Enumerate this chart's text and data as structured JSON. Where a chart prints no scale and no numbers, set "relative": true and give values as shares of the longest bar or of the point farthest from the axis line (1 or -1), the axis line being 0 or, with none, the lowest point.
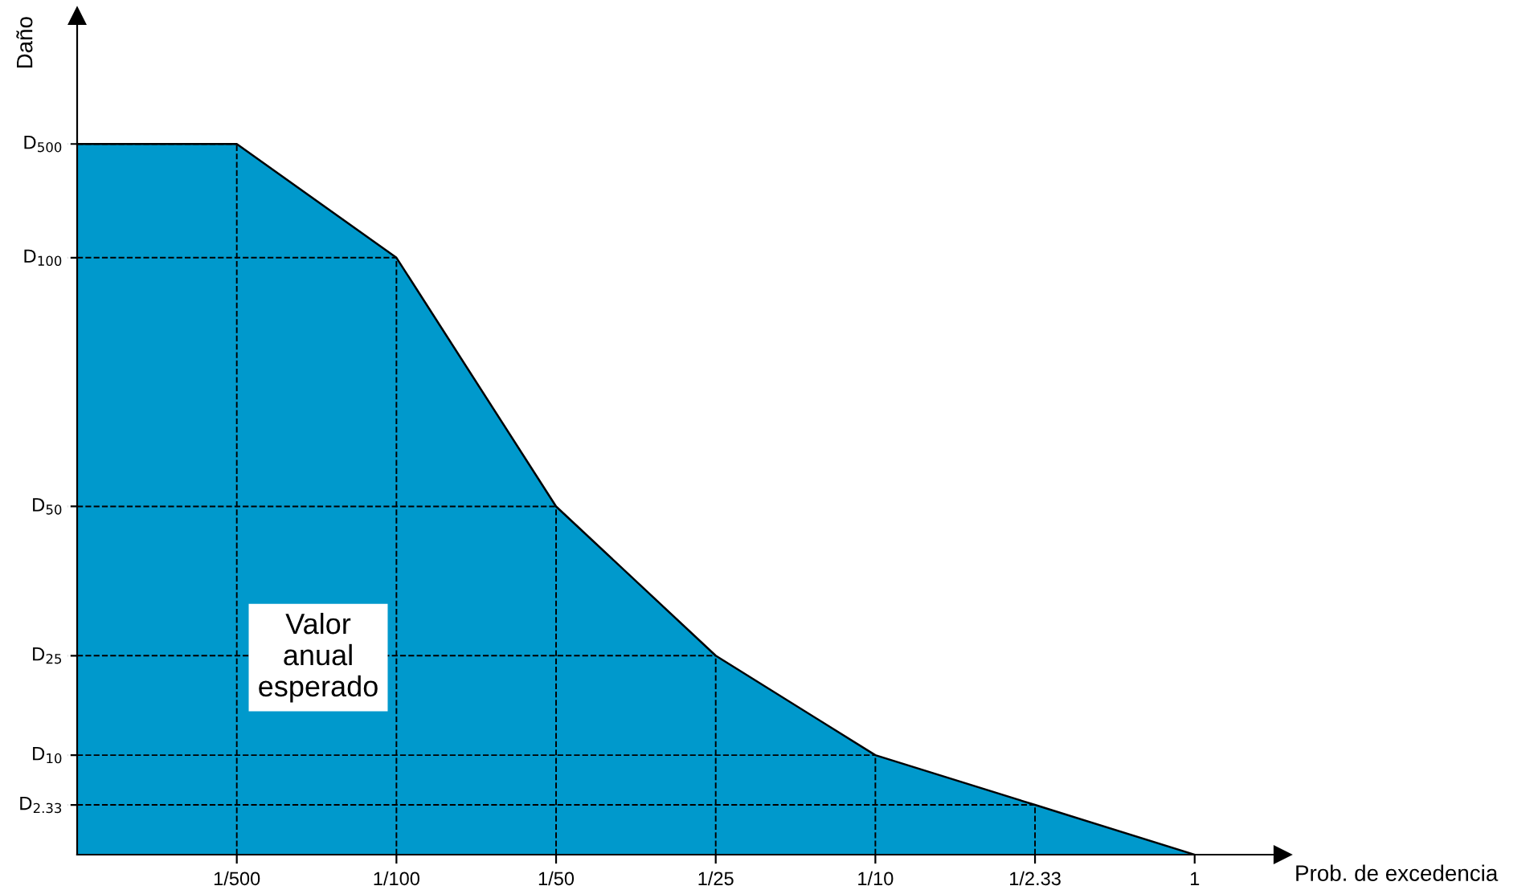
{
  "chart_data": {
    "type": "area",
    "relative": true,
    "xlabel": "Prob. de excedencia",
    "ylabel": "Daño",
    "categories": [
      null,
      "1/500",
      "1/100",
      "1/50",
      "1/25",
      "1/10",
      "1/2.33",
      "1"
    ],
    "series": [
      {
        "color": "#0099cc",
        "values": [
          1,
          1,
          0.84,
          0.49,
          0.28,
          0.14,
          0.07,
          0
        ]
      }
    ],
    "ref_lines": [
      {
        "axis": "y",
        "value": 1,
        "label": "D$_{500}$",
        "line_style": "dashed"
      },
      {
        "axis": "y",
        "value": 0.84,
        "label": "D$_{100}$",
        "line_style": "dashed"
      },
      {
        "axis": "y",
        "value": 0.49,
        "label": "D$_{50}$",
        "line_style": "dashed"
      },
      {
        "axis": "y",
        "value": 0.28,
        "label": "D$_{25}$",
        "line_style": "dashed"
      },
      {
        "axis": "y",
        "value": 0.14,
        "label": "D$_{10}$",
        "line_style": "dashed"
      },
      {
        "axis": "y",
        "value": 0.07,
        "label": "D$_{2.33}$",
        "line_style": "dashed"
      }
    ],
    "grid": "x",
    "annotations": [
      "Valor\nanual\nesperado"
    ]
  }
}
